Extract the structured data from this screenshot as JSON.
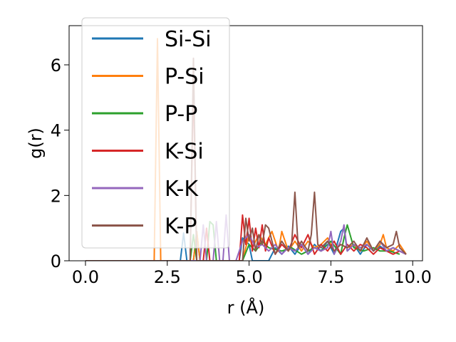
{
  "chart_data": {
    "type": "line",
    "xlabel": "r (Å)",
    "ylabel": "g(r)",
    "xlim": [
      -0.5,
      10.3
    ],
    "ylim": [
      0,
      7.2
    ],
    "xticks": [
      0.0,
      2.5,
      5.0,
      7.5,
      10.0
    ],
    "xtick_labels": [
      "0.0",
      "2.5",
      "5.0",
      "7.5",
      "10.0"
    ],
    "yticks": [
      0,
      2,
      4,
      6
    ],
    "ytick_labels": [
      "0",
      "2",
      "4",
      "6"
    ],
    "legend_position": "top-left",
    "grid": false,
    "series": [
      {
        "name": "Si-Si",
        "color": "#1f77b4",
        "x": [
          0.0,
          2.9,
          3.0,
          3.1,
          3.3,
          3.4,
          3.5,
          4.0,
          4.7,
          4.8,
          5.0,
          5.1,
          5.6,
          5.8,
          6.0,
          6.2,
          6.4,
          6.6,
          6.8,
          7.0,
          7.2,
          7.4,
          7.6,
          7.8,
          7.9,
          8.0,
          8.2,
          8.4,
          8.6,
          8.8,
          9.0,
          9.2,
          9.4,
          9.6,
          9.8
        ],
        "y": [
          0,
          0,
          0.85,
          0,
          0,
          0.9,
          0,
          0,
          0,
          0.7,
          0.5,
          0,
          0,
          0.4,
          0.2,
          0.45,
          0.2,
          0.5,
          0.2,
          0.5,
          0.3,
          0.6,
          0.2,
          0.9,
          1.0,
          0.3,
          0.5,
          0.2,
          0.5,
          0.3,
          0.45,
          0.3,
          0.4,
          0.3,
          0.2
        ]
      },
      {
        "name": "P-Si",
        "color": "#ff7f0e",
        "x": [
          0.0,
          2.1,
          2.2,
          2.3,
          3.3,
          3.4,
          3.5,
          4.8,
          5.0,
          5.1,
          5.3,
          5.5,
          5.7,
          5.9,
          6.0,
          6.2,
          6.4,
          6.6,
          6.8,
          7.0,
          7.2,
          7.4,
          7.6,
          7.8,
          8.0,
          8.2,
          8.4,
          8.6,
          8.8,
          9.0,
          9.1,
          9.2,
          9.4,
          9.6,
          9.8
        ],
        "y": [
          0,
          0,
          6.8,
          0,
          0,
          0.9,
          0,
          0,
          0.8,
          0.4,
          0.8,
          0.5,
          0.9,
          0.3,
          0.9,
          0.3,
          0.6,
          0.3,
          0.6,
          0.4,
          0.5,
          0.7,
          0.3,
          0.5,
          0.4,
          0.5,
          0.3,
          0.6,
          0.3,
          0.5,
          0.8,
          0.4,
          0.3,
          0.5,
          0.2
        ]
      },
      {
        "name": "P-P",
        "color": "#2ca02c",
        "x": [
          0.0,
          3.2,
          3.3,
          3.4,
          3.7,
          3.8,
          3.9,
          4.0,
          4.8,
          5.0,
          5.2,
          5.4,
          5.6,
          6.0,
          6.3,
          6.6,
          7.0,
          7.2,
          7.5,
          7.8,
          7.9,
          8.0,
          8.2,
          8.5,
          8.8,
          9.0,
          9.3,
          9.6
        ],
        "y": [
          0,
          0,
          0.8,
          0,
          0,
          1.2,
          1.1,
          0,
          0,
          0.5,
          0.3,
          0.6,
          0.4,
          0.3,
          0.4,
          0.2,
          0.4,
          0.3,
          0.6,
          0.2,
          0.7,
          1.1,
          0.4,
          0.3,
          0.4,
          0.3,
          0.3,
          0.2
        ]
      },
      {
        "name": "K-Si",
        "color": "#d62728",
        "x": [
          0.0,
          3.2,
          3.3,
          3.4,
          3.6,
          3.7,
          3.8,
          4.7,
          4.8,
          4.9,
          5.0,
          5.1,
          5.2,
          5.3,
          5.4,
          5.5,
          5.6,
          5.8,
          6.0,
          6.2,
          6.4,
          6.6,
          6.8,
          7.0,
          7.2,
          7.4,
          7.6,
          7.8,
          8.0,
          8.2,
          8.4,
          8.6,
          8.8,
          9.0,
          9.2,
          9.4,
          9.6,
          9.8
        ],
        "y": [
          0,
          0,
          5.5,
          0,
          0,
          1.0,
          0,
          0,
          1.4,
          0.5,
          1.3,
          0.3,
          1.0,
          0.4,
          1.1,
          0.3,
          0.7,
          0.2,
          0.5,
          0.3,
          0.8,
          0.4,
          0.8,
          0.2,
          0.5,
          0.3,
          0.6,
          0.2,
          0.5,
          0.3,
          0.5,
          0.4,
          0.2,
          0.4,
          0.3,
          0.2,
          0.3,
          0.2
        ]
      },
      {
        "name": "K-K",
        "color": "#9467bd",
        "x": [
          0.0,
          3.5,
          3.6,
          3.7,
          3.9,
          4.0,
          4.1,
          4.2,
          4.3,
          4.4,
          4.6,
          4.8,
          5.0,
          5.2,
          5.4,
          5.6,
          5.8,
          6.0,
          6.2,
          6.4,
          6.6,
          6.8,
          7.0,
          7.2,
          7.4,
          7.5,
          7.6,
          7.8,
          7.9,
          8.0,
          8.2,
          8.4,
          8.6,
          8.8,
          9.0,
          9.2,
          9.4,
          9.6,
          9.8
        ],
        "y": [
          0,
          0,
          1.1,
          0,
          0,
          1.2,
          0,
          0,
          1.4,
          0,
          0,
          0.6,
          0.8,
          0.4,
          0.5,
          0.3,
          0.5,
          0.2,
          0.4,
          0.3,
          0.5,
          0.2,
          0.4,
          0.3,
          0.4,
          0.9,
          0.2,
          0.6,
          1.1,
          0.3,
          0.5,
          0.4,
          0.5,
          0.3,
          0.6,
          0.3,
          0.4,
          0.3,
          0.2
        ]
      },
      {
        "name": "K-P",
        "color": "#8c564b",
        "x": [
          0.0,
          3.2,
          3.3,
          3.4,
          4.8,
          4.9,
          5.0,
          5.1,
          5.2,
          5.3,
          5.4,
          5.5,
          5.6,
          5.8,
          6.0,
          6.2,
          6.3,
          6.4,
          6.5,
          6.6,
          6.8,
          6.9,
          7.0,
          7.1,
          7.2,
          7.4,
          7.6,
          7.8,
          8.0,
          8.2,
          8.4,
          8.6,
          8.8,
          9.0,
          9.2,
          9.4,
          9.5,
          9.6,
          9.8
        ],
        "y": [
          0,
          0,
          6.2,
          0,
          0,
          1.3,
          0.6,
          1.0,
          0.3,
          0.8,
          0.5,
          1.1,
          1.0,
          0.2,
          0.6,
          0.3,
          0.5,
          2.1,
          0.4,
          0.6,
          0.3,
          0.8,
          2.1,
          0.5,
          0.4,
          0.6,
          0.3,
          0.5,
          0.4,
          0.6,
          0.3,
          0.7,
          0.3,
          0.6,
          0.4,
          0.5,
          0.9,
          0.4,
          0.2
        ]
      }
    ]
  }
}
